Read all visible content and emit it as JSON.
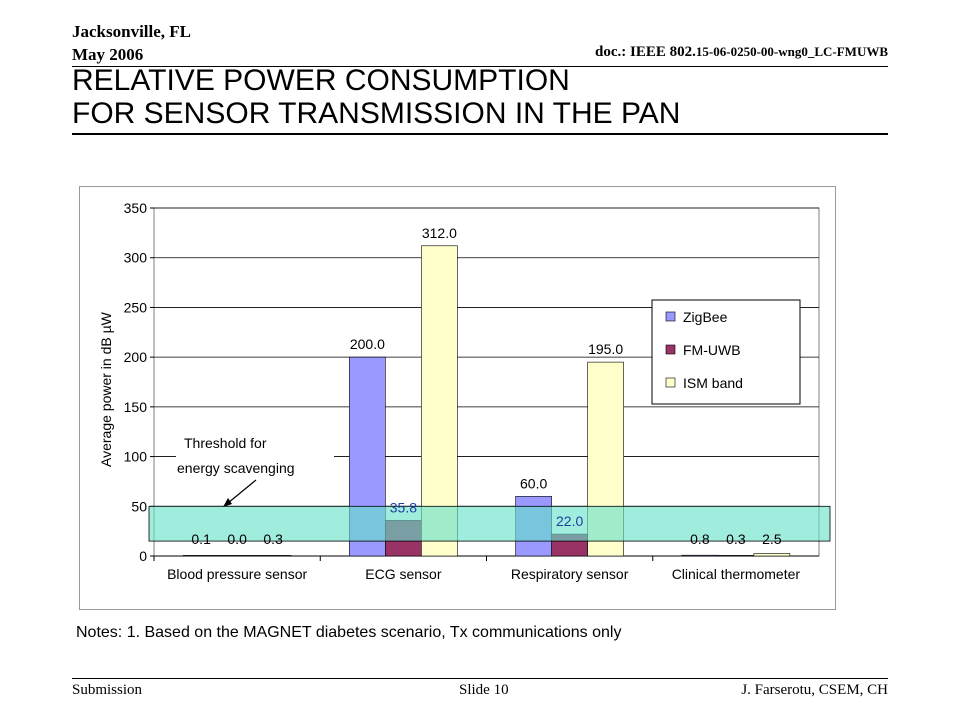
{
  "header": {
    "location": "Jacksonville, FL",
    "date": "May 2006",
    "doc_prefix": "doc.: IEEE 802.",
    "doc_number": "15-06-0250-00-wng0_LC-FMUWB"
  },
  "title": {
    "line1": "RELATIVE POWER CONSUMPTION",
    "line2": "FOR SENSOR TRANSMISSION IN THE PAN"
  },
  "chart_data": {
    "type": "bar",
    "categories": [
      "Blood pressure sensor",
      "ECG sensor",
      "Respiratory sensor",
      "Clinical thermometer"
    ],
    "series": [
      {
        "name": "ZigBee",
        "values": [
          0.1,
          200.0,
          60.0,
          0.8
        ],
        "labels": [
          "0.1",
          "200.0",
          "60.0",
          "0.8"
        ],
        "color": "#9999ff"
      },
      {
        "name": "FM-UWB",
        "values": [
          0.0,
          35.8,
          22.0,
          0.3
        ],
        "labels": [
          "0.0",
          "35.8",
          "22.0",
          "0.3"
        ],
        "color": "#993366"
      },
      {
        "name": "ISM band",
        "values": [
          0.3,
          312.0,
          195.0,
          2.5
        ],
        "labels": [
          "0.3",
          "312.0",
          "195.0",
          "2.5"
        ],
        "color": "#ffffcc"
      }
    ],
    "ylabel": "Average power in dB µW",
    "ylim": [
      0,
      350
    ],
    "yticks": [
      "0",
      "50",
      "100",
      "150",
      "200",
      "250",
      "300",
      "350"
    ],
    "grid": true,
    "legend_position": "right",
    "threshold_band": {
      "low": 15,
      "high": 50,
      "color": "#66e0c8"
    },
    "annotation": {
      "line1": "Threshold for",
      "line2": "energy scavenging"
    }
  },
  "notes": "Notes: 1. Based on the MAGNET diabetes scenario, Tx communications only",
  "footer": {
    "left": "Submission",
    "center": "Slide 10",
    "right": "J. Farserotu, CSEM, CH"
  }
}
